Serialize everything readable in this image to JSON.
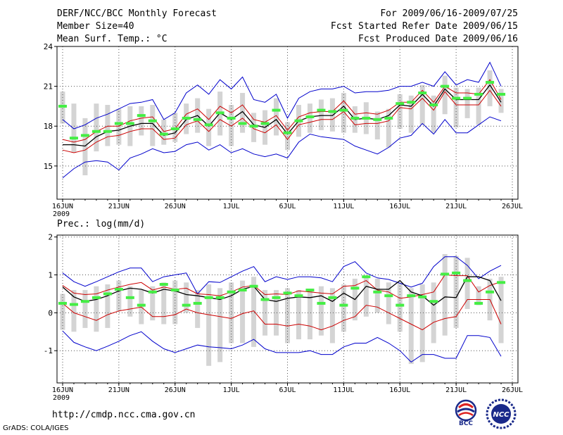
{
  "header": {
    "title": "DERF/NCC/BCC Monthly Forecast",
    "member_size": "Member Size=40",
    "variable_label": "Mean Surf. Temp.: °C",
    "forecast_period": "For 2009/06/16-2009/07/25",
    "started_refer": "Fcst Started Refer Date 2009/06/15",
    "produced": "Fcst Produced Date 2009/06/16"
  },
  "footer": {
    "url": "http://cmdp.ncc.cma.gov.cn",
    "grads_credit": "GrADS: COLA/IGES",
    "logo_bcc": "BCC",
    "logo_ncc": "NCC"
  },
  "colors": {
    "upper_bound": "#0000cc",
    "lower_bound": "#0000cc",
    "spread": "#cc0000",
    "ensemble_mean": "#000000",
    "box": "#d4d4d4",
    "climatology": "#44ee44",
    "grid": "#555555"
  },
  "x_ticks": [
    {
      "day": 0,
      "label": "16JUN",
      "sub": "2009"
    },
    {
      "day": 5,
      "label": "21JUN"
    },
    {
      "day": 10,
      "label": "26JUN"
    },
    {
      "day": 15,
      "label": "1JUL"
    },
    {
      "day": 20,
      "label": "6JUL"
    },
    {
      "day": 25,
      "label": "11JUL"
    },
    {
      "day": 30,
      "label": "16JUL"
    },
    {
      "day": 35,
      "label": "21JUL"
    },
    {
      "day": 40,
      "label": "26JUL"
    }
  ],
  "chart_data": [
    {
      "type": "line",
      "title": "Mean Surf. Temp.: °C",
      "x_unit": "day since 16JUN",
      "ylim": [
        12.5,
        24
      ],
      "yticks": [
        15,
        18,
        21,
        24
      ],
      "grid": true,
      "series": [
        {
          "name": "upper",
          "color": "#0000cc",
          "values": [
            18.5,
            17.8,
            18.1,
            18.6,
            18.9,
            19.3,
            19.7,
            19.8,
            20.0,
            18.5,
            19.0,
            20.5,
            21.1,
            20.4,
            21.5,
            20.8,
            21.7,
            20.0,
            19.8,
            20.4,
            18.6,
            20.1,
            20.6,
            20.8,
            20.8,
            21.0,
            20.5,
            20.6,
            20.6,
            20.7,
            21.0,
            21.0,
            21.3,
            21.0,
            22.1,
            21.1,
            21.5,
            21.3,
            22.8,
            21.0
          ]
        },
        {
          "name": "spread_upper",
          "color": "#cc0000",
          "values": [
            17.0,
            16.8,
            17.0,
            17.6,
            18.0,
            18.0,
            18.4,
            18.6,
            18.7,
            17.6,
            17.8,
            18.9,
            19.3,
            18.5,
            19.5,
            19.0,
            19.6,
            18.5,
            18.3,
            18.8,
            17.7,
            18.7,
            19.0,
            19.1,
            19.1,
            19.9,
            18.9,
            19.0,
            18.9,
            19.2,
            19.8,
            19.8,
            20.7,
            19.8,
            21.0,
            20.5,
            20.5,
            20.4,
            21.5,
            20.0
          ]
        },
        {
          "name": "ensemble_mean",
          "color": "#000000",
          "values": [
            16.6,
            16.6,
            16.5,
            17.2,
            17.6,
            17.7,
            18.0,
            18.2,
            18.2,
            17.3,
            17.5,
            18.5,
            18.8,
            18.0,
            19.0,
            18.5,
            19.1,
            18.1,
            17.9,
            18.5,
            17.4,
            18.4,
            18.7,
            18.8,
            18.8,
            19.5,
            18.5,
            18.6,
            18.5,
            18.8,
            19.6,
            19.5,
            20.4,
            19.5,
            20.8,
            20.0,
            20.0,
            20.0,
            21.1,
            19.8
          ]
        },
        {
          "name": "spread_lower",
          "color": "#cc0000",
          "values": [
            16.2,
            16.0,
            16.2,
            16.8,
            17.2,
            17.3,
            17.6,
            17.8,
            17.8,
            17.0,
            17.1,
            18.1,
            18.4,
            17.6,
            18.5,
            18.0,
            18.6,
            17.8,
            17.5,
            18.1,
            17.0,
            18.1,
            18.3,
            18.5,
            18.5,
            19.1,
            18.1,
            18.2,
            18.2,
            18.4,
            19.4,
            19.3,
            20.1,
            19.2,
            20.6,
            19.6,
            19.6,
            19.6,
            20.7,
            19.5
          ]
        },
        {
          "name": "lower",
          "color": "#0000cc",
          "values": [
            14.1,
            14.8,
            15.3,
            15.4,
            15.3,
            14.7,
            15.6,
            15.9,
            16.3,
            16.0,
            16.1,
            16.6,
            16.8,
            16.2,
            16.6,
            16.0,
            16.3,
            15.9,
            15.7,
            15.9,
            15.6,
            16.8,
            17.4,
            17.2,
            17.1,
            17.0,
            16.5,
            16.2,
            15.9,
            16.4,
            17.1,
            17.3,
            18.2,
            17.4,
            18.5,
            17.5,
            17.5,
            18.1,
            18.7,
            18.4
          ]
        }
      ],
      "boxes": {
        "low": [
          18.2,
          16.0,
          14.3,
          16.1,
          16.5,
          16.6,
          16.5,
          17.3,
          16.5,
          16.6,
          16.8,
          17.4,
          17.5,
          16.5,
          17.3,
          16.5,
          17.5,
          16.8,
          16.6,
          17.3,
          16.2,
          17.2,
          17.5,
          17.7,
          17.6,
          17.5,
          17.5,
          17.4,
          17.0,
          16.4,
          17.8,
          17.5,
          18.1,
          17.5,
          18.9,
          17.9,
          18.6,
          18.1,
          19.5,
          19.0
        ],
        "high": [
          20.6,
          19.7,
          18.6,
          19.7,
          19.6,
          19.3,
          19.5,
          19.5,
          19.6,
          18.5,
          19.0,
          19.7,
          20.1,
          19.3,
          20.6,
          19.6,
          20.5,
          19.0,
          19.2,
          20.1,
          18.3,
          19.6,
          19.7,
          20.0,
          20.1,
          20.5,
          19.5,
          19.8,
          19.1,
          19.3,
          20.4,
          20.3,
          21.1,
          20.3,
          21.8,
          20.9,
          20.8,
          20.9,
          22.2,
          20.8
        ]
      },
      "climatology": [
        19.5,
        17.1,
        17.3,
        17.6,
        17.6,
        18.2,
        18.2,
        18.8,
        18.4,
        17.4,
        17.8,
        18.6,
        18.5,
        18.1,
        19.0,
        18.6,
        18.2,
        18.0,
        18.2,
        19.2,
        17.5,
        18.4,
        18.7,
        19.2,
        19.1,
        19.2,
        18.6,
        18.6,
        18.5,
        18.6,
        19.7,
        19.8,
        20.5,
        19.6,
        21.0,
        20.1,
        20.1,
        20.4,
        21.3,
        20.4
      ]
    },
    {
      "type": "line",
      "title": "Prec.: log(mm/d)",
      "x_unit": "day since 16JUN",
      "ylim": [
        -1.85,
        2.05
      ],
      "yticks": [
        -1,
        0,
        1,
        2
      ],
      "grid": true,
      "series": [
        {
          "name": "upper",
          "color": "#0000cc",
          "values": [
            1.05,
            0.82,
            0.7,
            0.82,
            0.95,
            1.08,
            1.18,
            1.18,
            0.82,
            0.95,
            1.0,
            1.05,
            0.5,
            0.82,
            0.8,
            0.95,
            1.1,
            1.22,
            0.82,
            0.95,
            0.88,
            0.95,
            0.95,
            0.92,
            0.82,
            1.22,
            1.35,
            1.05,
            0.92,
            0.88,
            0.78,
            0.68,
            0.78,
            1.22,
            1.48,
            1.48,
            1.25,
            0.9,
            1.1,
            1.25
          ]
        },
        {
          "name": "spread_upper",
          "color": "#cc0000",
          "values": [
            0.72,
            0.52,
            0.48,
            0.5,
            0.6,
            0.68,
            0.75,
            0.8,
            0.6,
            0.68,
            0.62,
            0.65,
            0.5,
            0.48,
            0.45,
            0.55,
            0.68,
            0.72,
            0.48,
            0.5,
            0.48,
            0.58,
            0.55,
            0.52,
            0.5,
            0.7,
            0.72,
            0.85,
            0.6,
            0.55,
            0.38,
            0.42,
            0.48,
            0.55,
            1.0,
            0.98,
            0.98,
            0.55,
            0.72,
            0.82
          ]
        },
        {
          "name": "ensemble_mean",
          "color": "#000000",
          "values": [
            0.68,
            0.42,
            0.3,
            0.35,
            0.45,
            0.58,
            0.65,
            0.62,
            0.52,
            0.62,
            0.58,
            0.48,
            0.45,
            0.4,
            0.35,
            0.45,
            0.62,
            0.7,
            0.35,
            0.3,
            0.38,
            0.42,
            0.4,
            0.45,
            0.3,
            0.52,
            0.35,
            0.7,
            0.62,
            0.62,
            0.85,
            0.55,
            0.45,
            0.2,
            0.42,
            0.4,
            0.95,
            0.95,
            0.85,
            0.32
          ]
        },
        {
          "name": "spread_lower",
          "color": "#cc0000",
          "values": [
            0.25,
            0.0,
            -0.1,
            -0.2,
            -0.05,
            0.05,
            0.1,
            0.15,
            -0.1,
            -0.1,
            -0.05,
            0.1,
            0.0,
            -0.05,
            -0.1,
            -0.15,
            -0.02,
            0.05,
            -0.3,
            -0.3,
            -0.35,
            -0.3,
            -0.35,
            -0.45,
            -0.35,
            -0.2,
            -0.1,
            0.2,
            0.15,
            0.0,
            -0.15,
            -0.3,
            -0.45,
            -0.25,
            -0.15,
            -0.1,
            0.35,
            0.35,
            0.35,
            -0.3
          ]
        },
        {
          "name": "lower",
          "color": "#0000cc",
          "values": [
            -0.48,
            -0.78,
            -0.9,
            -1.0,
            -0.88,
            -0.75,
            -0.6,
            -0.5,
            -0.75,
            -0.95,
            -1.05,
            -0.95,
            -0.85,
            -0.9,
            -0.92,
            -0.95,
            -0.85,
            -0.7,
            -0.95,
            -1.05,
            -1.05,
            -1.05,
            -1.0,
            -1.1,
            -1.1,
            -0.9,
            -0.8,
            -0.8,
            -0.65,
            -0.8,
            -1.0,
            -1.3,
            -1.1,
            -1.1,
            -1.2,
            -1.2,
            -0.6,
            -0.6,
            -0.65,
            -1.15
          ]
        }
      ],
      "boxes": {
        "low": [
          -0.45,
          -0.5,
          -0.4,
          -0.5,
          -0.4,
          0.05,
          -0.1,
          -0.3,
          -0.2,
          -0.3,
          -0.3,
          0.0,
          -0.4,
          -1.4,
          -1.3,
          -0.8,
          -0.8,
          -0.9,
          -0.6,
          -0.6,
          -0.8,
          -0.7,
          -0.7,
          -0.6,
          -0.8,
          -0.5,
          -0.2,
          -0.1,
          0.0,
          -0.3,
          -0.5,
          -1.35,
          -1.3,
          -0.8,
          -0.6,
          -0.4,
          0.1,
          0.2,
          -0.2,
          -0.8
        ],
        "high": [
          0.5,
          0.6,
          0.6,
          0.7,
          0.75,
          0.85,
          0.7,
          0.6,
          0.7,
          0.8,
          0.85,
          0.8,
          0.6,
          0.75,
          0.65,
          0.8,
          0.85,
          0.95,
          0.6,
          0.6,
          0.65,
          0.6,
          0.6,
          0.7,
          0.65,
          0.75,
          0.9,
          0.95,
          0.9,
          0.8,
          0.8,
          0.65,
          0.75,
          0.8,
          1.55,
          1.5,
          1.45,
          0.7,
          0.9,
          0.95
        ]
      },
      "climatology": [
        0.25,
        0.22,
        0.3,
        0.4,
        0.5,
        0.62,
        0.4,
        0.2,
        0.55,
        0.75,
        0.6,
        0.2,
        0.25,
        0.4,
        0.4,
        0.55,
        0.6,
        0.7,
        0.35,
        0.4,
        0.52,
        0.45,
        0.6,
        0.25,
        0.4,
        0.2,
        0.65,
        0.95,
        0.55,
        0.45,
        0.2,
        0.45,
        0.42,
        0.3,
        1.02,
        1.05,
        0.85,
        0.25,
        0.55,
        0.8
      ]
    }
  ]
}
